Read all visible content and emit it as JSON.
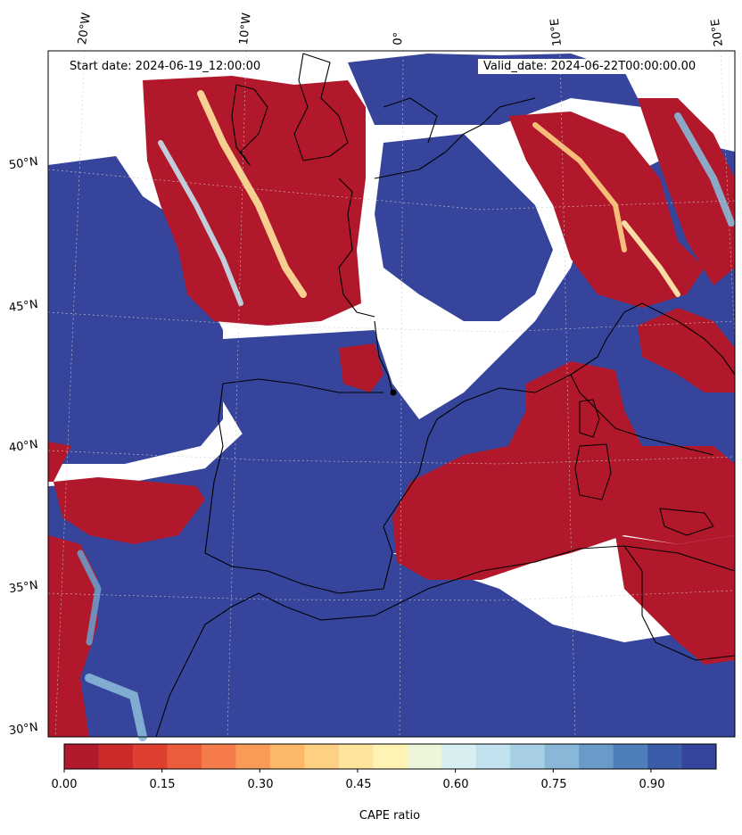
{
  "map": {
    "start_label": "Start date: 2024-06-19_12:00:00",
    "valid_label": "Valid_date: 2024-06-22T00:00:00.00",
    "lon_labels": [
      "20°W",
      "10°W",
      "0°",
      "10°E",
      "20°E"
    ],
    "lat_labels": [
      "50°N",
      "45°N",
      "40°N",
      "35°N",
      "30°N"
    ]
  },
  "colorbar": {
    "label": "CAPE ratio",
    "ticks": [
      "0.00",
      "0.15",
      "0.30",
      "0.45",
      "0.60",
      "0.75",
      "0.90"
    ],
    "colors": [
      "#b2182b",
      "#cb2b2b",
      "#de3f2e",
      "#ec5b3b",
      "#f67b4a",
      "#fa9b58",
      "#fdb768",
      "#fdd083",
      "#fee39c",
      "#fff3b3",
      "#eef6d9",
      "#d9eef0",
      "#c2e1ee",
      "#a6cfe4",
      "#88b7d7",
      "#6a9bc8",
      "#4f7fbb",
      "#3b5ca8",
      "#36459b"
    ],
    "range": [
      0,
      1
    ]
  },
  "palette": {
    "high": "#36459b",
    "low": "#b2182b",
    "coast": "#000000"
  }
}
